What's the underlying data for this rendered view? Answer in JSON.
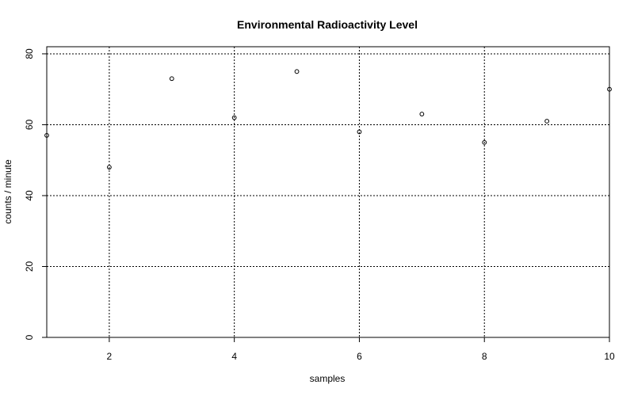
{
  "chart_data": {
    "type": "scatter",
    "title": "Environmental Radioactivity Level",
    "xlabel": "samples",
    "ylabel": "counts / minute",
    "x": [
      1,
      2,
      3,
      4,
      5,
      6,
      7,
      8,
      9,
      10
    ],
    "y": [
      57,
      48,
      73,
      62,
      75,
      58,
      63,
      55,
      61,
      70
    ],
    "xlim": [
      1,
      10
    ],
    "ylim": [
      0,
      82
    ],
    "xticks": [
      2,
      4,
      6,
      8,
      10
    ],
    "yticks": [
      0,
      20,
      40,
      60,
      80
    ],
    "grid": true,
    "grid_style": "dotted",
    "marker": "open-circle",
    "colors": {
      "points": "#000000",
      "grid": "#000000",
      "frame": "#000000"
    }
  }
}
